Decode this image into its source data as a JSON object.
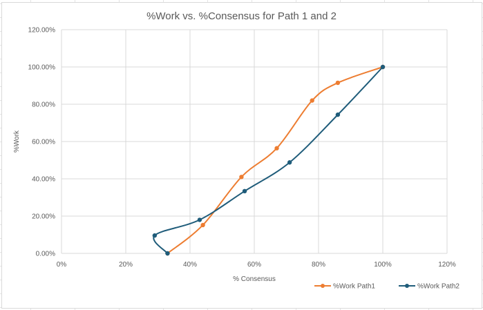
{
  "chart_data": {
    "type": "scatter",
    "title": "%Work vs. %Consensus for Path 1 and 2",
    "xlabel": "% Consensus",
    "ylabel": "%Work",
    "xlim": [
      0,
      120
    ],
    "ylim": [
      0,
      120
    ],
    "x_ticks": [
      "0%",
      "20%",
      "40%",
      "60%",
      "80%",
      "100%",
      "120%"
    ],
    "y_ticks": [
      "0.00%",
      "20.00%",
      "40.00%",
      "60.00%",
      "80.00%",
      "100.00%",
      "120.00%"
    ],
    "grid": true,
    "legend_position": "bottom-right",
    "smoothed_lines": true,
    "series": [
      {
        "name": "%Work Path1",
        "color": "#ED7D31",
        "points": [
          [
            33,
            0
          ],
          [
            44,
            15.2
          ],
          [
            56,
            41
          ],
          [
            67,
            56.4
          ],
          [
            78,
            82
          ],
          [
            86,
            91.5
          ],
          [
            100,
            100
          ]
        ]
      },
      {
        "name": "%Work Path2",
        "color": "#1F5C7A",
        "points": [
          [
            33,
            0
          ],
          [
            29,
            9.6
          ],
          [
            43,
            18
          ],
          [
            57,
            33.4
          ],
          [
            71,
            48.8
          ],
          [
            86,
            74.4
          ],
          [
            100,
            100
          ]
        ]
      }
    ]
  }
}
